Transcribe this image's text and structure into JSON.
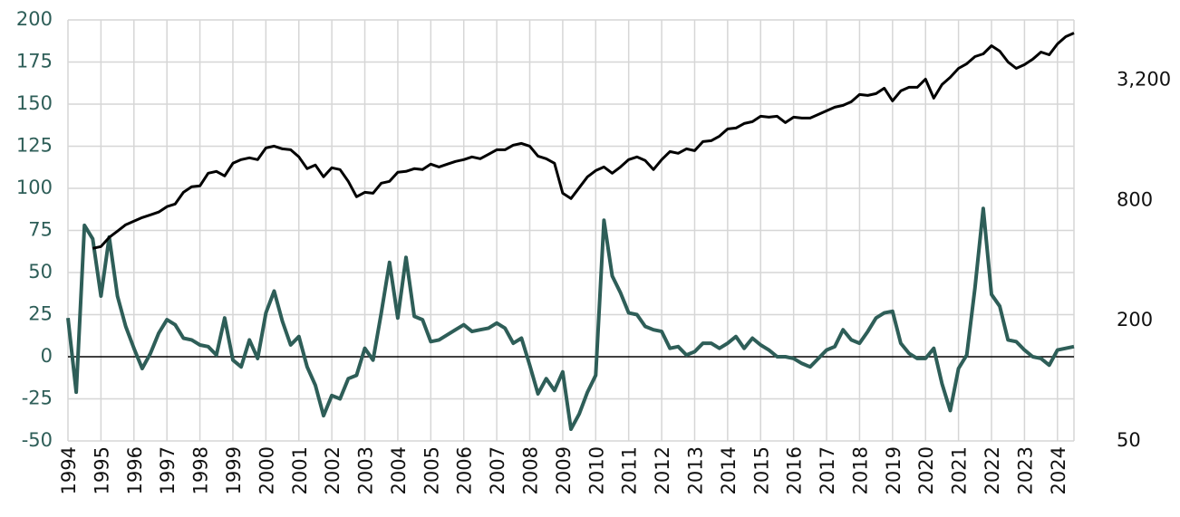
{
  "chart_data": {
    "type": "line",
    "x": [
      1994,
      1994.25,
      1994.5,
      1994.75,
      1995,
      1995.25,
      1995.5,
      1995.75,
      1996,
      1996.25,
      1996.5,
      1996.75,
      1997,
      1997.25,
      1997.5,
      1997.75,
      1998,
      1998.25,
      1998.5,
      1998.75,
      1999,
      1999.25,
      1999.5,
      1999.75,
      2000,
      2000.25,
      2000.5,
      2000.75,
      2001,
      2001.25,
      2001.5,
      2001.75,
      2002,
      2002.25,
      2002.5,
      2002.75,
      2003,
      2003.25,
      2003.5,
      2003.75,
      2004,
      2004.25,
      2004.5,
      2004.75,
      2005,
      2005.25,
      2005.5,
      2005.75,
      2006,
      2006.25,
      2006.5,
      2006.75,
      2007,
      2007.25,
      2007.5,
      2007.75,
      2008,
      2008.25,
      2008.5,
      2008.75,
      2009,
      2009.25,
      2009.5,
      2009.75,
      2010,
      2010.25,
      2010.5,
      2010.75,
      2011,
      2011.25,
      2011.5,
      2011.75,
      2012,
      2012.25,
      2012.5,
      2012.75,
      2013,
      2013.25,
      2013.5,
      2013.75,
      2014,
      2014.25,
      2014.5,
      2014.75,
      2015,
      2015.25,
      2015.5,
      2015.75,
      2016,
      2016.25,
      2016.5,
      2016.75,
      2017,
      2017.25,
      2017.5,
      2017.75,
      2018,
      2018.25,
      2018.5,
      2018.75,
      2019,
      2019.25,
      2019.5,
      2019.75,
      2020,
      2020.25,
      2020.5,
      2020.75,
      2021,
      2021.25,
      2021.5,
      2021.75,
      2022,
      2022.25,
      2022.5,
      2022.75,
      2023,
      2023.25,
      2023.5,
      2023.75,
      2024,
      2024.25,
      2024.5
    ],
    "series": [
      {
        "color": "#2e5e58",
        "values": [
          23,
          -21,
          78,
          70,
          36,
          71,
          36,
          18,
          5,
          -7,
          2,
          14,
          22,
          19,
          11,
          10,
          7,
          6,
          1,
          23,
          -2,
          -6,
          10,
          -1,
          26,
          39,
          21,
          7,
          12,
          -6,
          -17,
          -35,
          -23,
          -25,
          -13,
          -11,
          5,
          -2,
          26,
          56,
          23,
          59,
          24,
          22,
          9,
          10,
          13,
          16,
          19,
          15,
          16,
          17,
          20,
          17,
          8,
          11,
          -5,
          -22,
          -13,
          -20,
          -9,
          -43,
          -34,
          -21,
          -11,
          81,
          48,
          38,
          26,
          25,
          18,
          16,
          15,
          5,
          6,
          1,
          3,
          8,
          8,
          5,
          8,
          12,
          5,
          11,
          7,
          4,
          0,
          0,
          -1,
          -4,
          -6,
          -1,
          4,
          6,
          16,
          10,
          8,
          15,
          23,
          26,
          27,
          8,
          2,
          -1,
          -1,
          5,
          -16,
          -32,
          -7,
          1,
          41,
          88,
          37,
          30,
          10,
          9,
          4,
          0,
          -1,
          -5,
          4,
          5,
          6
        ]
      },
      {
        "color": "#000000",
        "axis": "y2",
        "values": [
          null,
          null,
          null,
          460,
          470,
          522,
          561,
          604,
          629,
          656,
          677,
          699,
          744,
          767,
          878,
          935,
          945,
          1094,
          1117,
          1060,
          1227,
          1279,
          1306,
          1279,
          1464,
          1495,
          1449,
          1434,
          1320,
          1152,
          1201,
          1049,
          1164,
          1140,
          996,
          834,
          878,
          869,
          975,
          996,
          1105,
          1117,
          1152,
          1140,
          1214,
          1176,
          1214,
          1253,
          1279,
          1320,
          1292,
          1361,
          1434,
          1434,
          1511,
          1542,
          1495,
          1333,
          1292,
          1227,
          869,
          817,
          926,
          1049,
          1128,
          1176,
          1094,
          1176,
          1279,
          1320,
          1266,
          1140,
          1279,
          1404,
          1376,
          1449,
          1419,
          1575,
          1591,
          1677,
          1822,
          1842,
          1940,
          1981,
          2109,
          2086,
          2109,
          1960,
          2086,
          2065,
          2065,
          2154,
          2245,
          2341,
          2390,
          2492,
          2708,
          2680,
          2736,
          2914,
          2517,
          2825,
          2944,
          2944,
          3234,
          2598,
          3037,
          3302,
          3664,
          3861,
          4196,
          4329,
          4754,
          4466,
          3942,
          3664,
          3821,
          4069,
          4420,
          4284,
          4856,
          5278,
          5502
        ]
      }
    ],
    "xlim": [
      1994,
      2024.5
    ],
    "xticks": [
      1994,
      1995,
      1996,
      1997,
      1998,
      1999,
      2000,
      2001,
      2002,
      2003,
      2004,
      2005,
      2006,
      2007,
      2008,
      2009,
      2010,
      2011,
      2012,
      2013,
      2014,
      2015,
      2016,
      2017,
      2018,
      2019,
      2020,
      2021,
      2022,
      2023,
      2024
    ],
    "ylim": [
      -50,
      200
    ],
    "yticks": [
      -50,
      -25,
      0,
      25,
      50,
      75,
      100,
      125,
      150,
      175,
      200
    ],
    "y2lim": [
      50,
      6400
    ],
    "y2ticks": [
      50,
      200,
      800,
      {
        "value": 3200,
        "label": "3,200"
      }
    ],
    "y2log": true,
    "grid": true
  }
}
